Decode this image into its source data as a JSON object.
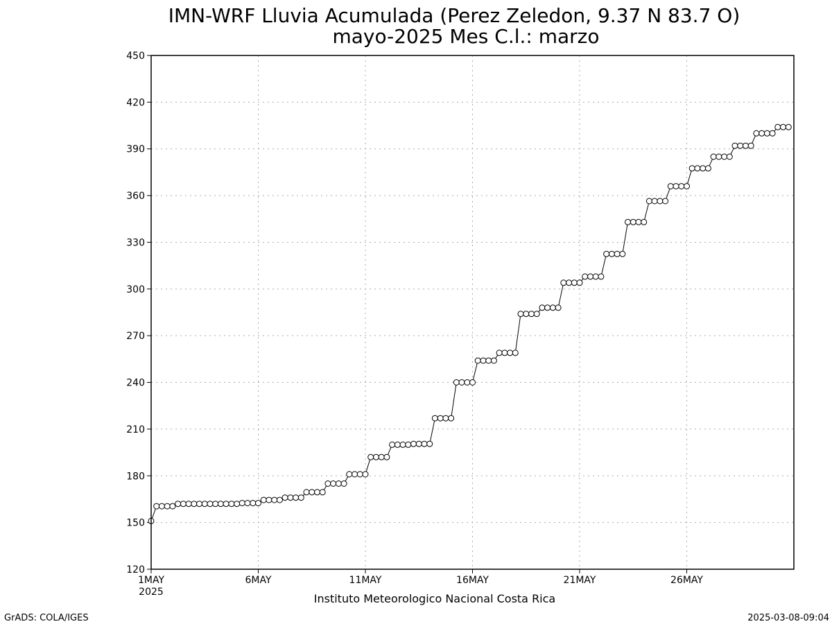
{
  "chart_data": {
    "type": "line",
    "title": "IMN-WRF  Lluvia Acumulada (Perez Zeledon, 9.37  N 83.7  O)",
    "subtitle": "mayo-2025 Mes C.l.: marzo",
    "xlabel": "",
    "ylabel": "",
    "ylim": [
      120,
      450
    ],
    "yticks": [
      120,
      150,
      180,
      210,
      240,
      270,
      300,
      330,
      360,
      390,
      420,
      450
    ],
    "xlim": [
      1,
      31
    ],
    "xticks": [
      {
        "day": 1,
        "label": "1MAY",
        "sublabel": "2025"
      },
      {
        "day": 6,
        "label": "6MAY",
        "sublabel": ""
      },
      {
        "day": 11,
        "label": "11MAY",
        "sublabel": ""
      },
      {
        "day": 16,
        "label": "16MAY",
        "sublabel": ""
      },
      {
        "day": 21,
        "label": "21MAY",
        "sublabel": ""
      },
      {
        "day": 26,
        "label": "26MAY",
        "sublabel": ""
      }
    ],
    "grid": true,
    "points_per_day": 4,
    "values": [
      151,
      160.5,
      160.5,
      160.5,
      160.5,
      162,
      162,
      162,
      162,
      162,
      162,
      162,
      162,
      162,
      162,
      162,
      162,
      162.5,
      162.5,
      162.5,
      162.5,
      164.5,
      164.5,
      164.5,
      164.5,
      166,
      166,
      166,
      166,
      169.5,
      169.5,
      169.5,
      169.5,
      175,
      175,
      175,
      175,
      181,
      181,
      181,
      181,
      192,
      192,
      192,
      192,
      200,
      200,
      200,
      200,
      200.5,
      200.5,
      200.5,
      200.5,
      217,
      217,
      217,
      217,
      240,
      240,
      240,
      240,
      254,
      254,
      254,
      254,
      259,
      259,
      259,
      259,
      284,
      284,
      284,
      284,
      288,
      288,
      288,
      288,
      304,
      304,
      304,
      304,
      308,
      308,
      308,
      308,
      322.5,
      322.5,
      322.5,
      322.5,
      343,
      343,
      343,
      343,
      356.5,
      356.5,
      356.5,
      356.5,
      366,
      366,
      366,
      366,
      377.5,
      377.5,
      377.5,
      377.5,
      385,
      385,
      385,
      385,
      392,
      392,
      392,
      392,
      400,
      400,
      400,
      400,
      404,
      404,
      404
    ]
  },
  "footer": {
    "credit": "Instituto Meteorologico Nacional Costa Rica",
    "left": "GrADS: COLA/IGES",
    "right": "2025-03-08-09:04"
  }
}
